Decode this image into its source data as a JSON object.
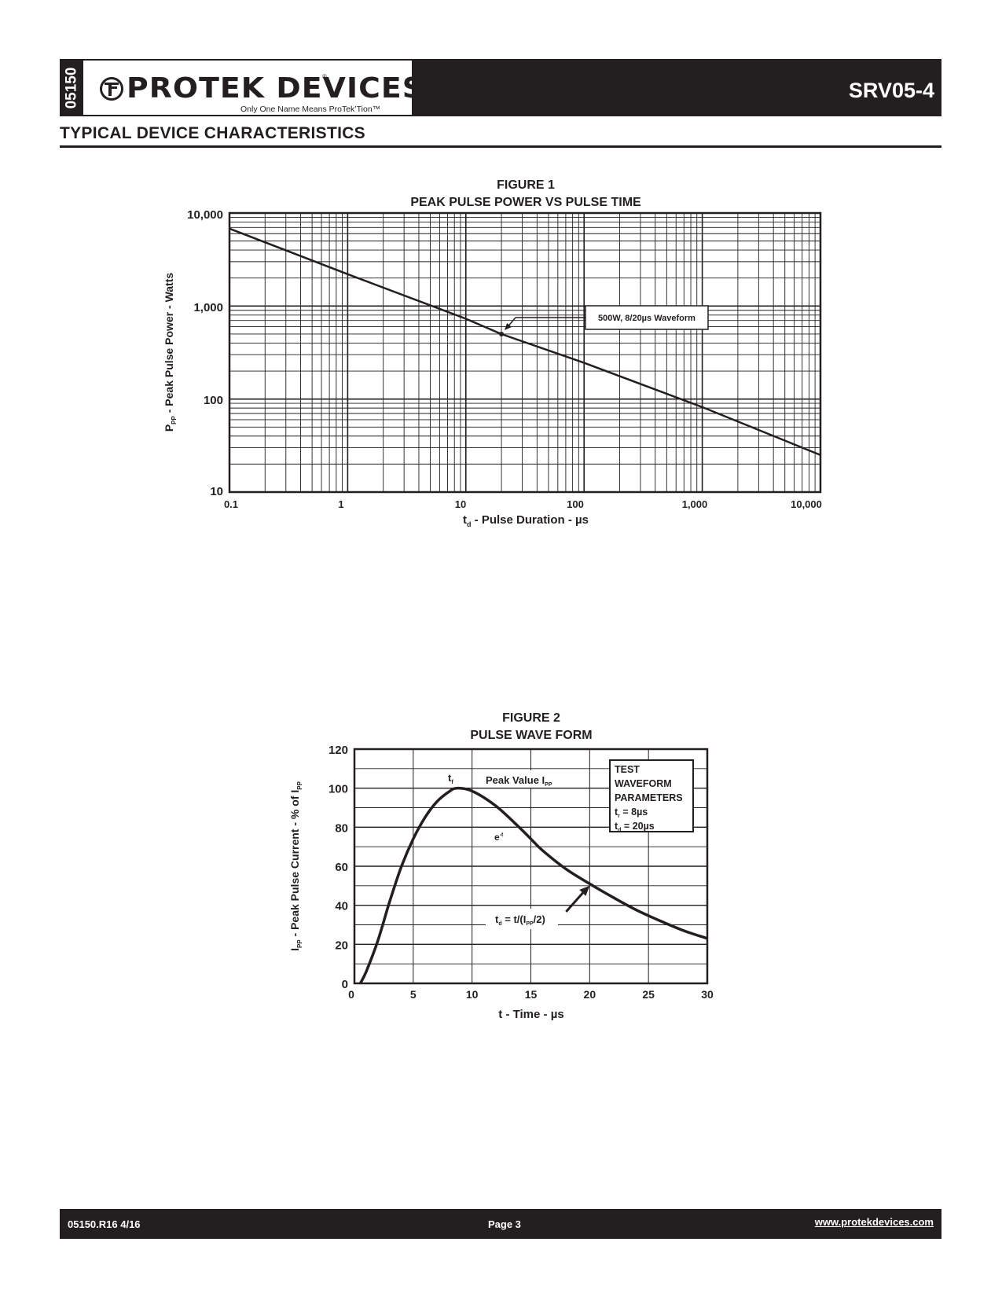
{
  "header": {
    "doc_number": "05150",
    "logo_text": "PROTEK DEVICES",
    "logo_registered": "®",
    "logo_tagline": "Only One Name Means ProTek’Tion™",
    "part_number": "SRV05-4"
  },
  "section_title": "TYPICAL DEVICE CHARACTERISTICS",
  "chart_data": [
    {
      "type": "line",
      "title": "FIGURE 1",
      "subtitle": "PEAK PULSE POWER VS PULSE TIME",
      "xlabel_main": "t",
      "xlabel_sub": "d",
      "xlabel_rest": " - Pulse Duration - µs",
      "ylabel_main": "P",
      "ylabel_sub": "PP",
      "ylabel_rest": " - Peak Pulse Power - Watts",
      "xscale": "log",
      "yscale": "log",
      "xlim": [
        0.1,
        10000
      ],
      "ylim": [
        10,
        10000
      ],
      "x_ticks": [
        "0.1",
        "1",
        "10",
        "100",
        "1,000",
        "10,000"
      ],
      "y_ticks": [
        "10",
        "100",
        "1,000",
        "10,000"
      ],
      "grid": true,
      "series": [
        {
          "name": "Peak Pulse Power",
          "x": [
            0.1,
            1,
            10,
            20,
            100,
            1000,
            10000
          ],
          "y": [
            6800,
            2200,
            730,
            500,
            245,
            82,
            25
          ]
        }
      ],
      "annotation": {
        "text": "500W, 8/20µs Waveform",
        "point": [
          20,
          500
        ]
      }
    },
    {
      "type": "line",
      "title": "FIGURE 2",
      "subtitle": "PULSE WAVE FORM",
      "xlabel": "t - Time - µs",
      "ylabel_main": "I",
      "ylabel_sub": "PP",
      "ylabel_mid": " - Peak Pulse Current - % of I",
      "ylabel_sub2": "PP",
      "xlim": [
        0,
        30
      ],
      "ylim": [
        0,
        120
      ],
      "x_ticks": [
        "0",
        "5",
        "10",
        "15",
        "20",
        "25",
        "30"
      ],
      "y_ticks": [
        "0",
        "20",
        "40",
        "60",
        "80",
        "100",
        "120"
      ],
      "grid": true,
      "series": [
        {
          "name": "Pulse",
          "x": [
            0.5,
            1,
            2,
            3,
            4,
            5,
            6,
            7,
            8,
            8.7,
            10,
            12,
            14,
            15,
            16,
            18,
            20,
            22,
            24,
            26,
            28,
            30
          ],
          "y": [
            0,
            6,
            22,
            42,
            60,
            74,
            85,
            93,
            98,
            100,
            98.5,
            91,
            80,
            74,
            68,
            58.5,
            51,
            44,
            37.5,
            32,
            27,
            23
          ]
        }
      ],
      "annotations": {
        "tf_main": "t",
        "tf_sub": "f",
        "peak_main": "Peak Value I",
        "peak_sub": "PP",
        "exp_main": "e",
        "exp_sup": "-t",
        "td_a": "t",
        "td_b": "d",
        "td_c": " = t/(I",
        "td_d": "PP",
        "td_e": "/2)"
      },
      "legend": {
        "line1": "TEST",
        "line2": "WAVEFORM",
        "line3": "PARAMETERS",
        "tf_main": "t",
        "tf_sub": "r",
        "tf_val": " = 8µs",
        "td_main": "t",
        "td_sub": "d",
        "td_val": " = 20µs"
      }
    }
  ],
  "footer": {
    "revision": "05150.R16 4/16",
    "page": "Page 3",
    "website": "www.protekdevices.com"
  },
  "colors": {
    "dark": "#231f20",
    "white": "#ffffff"
  }
}
